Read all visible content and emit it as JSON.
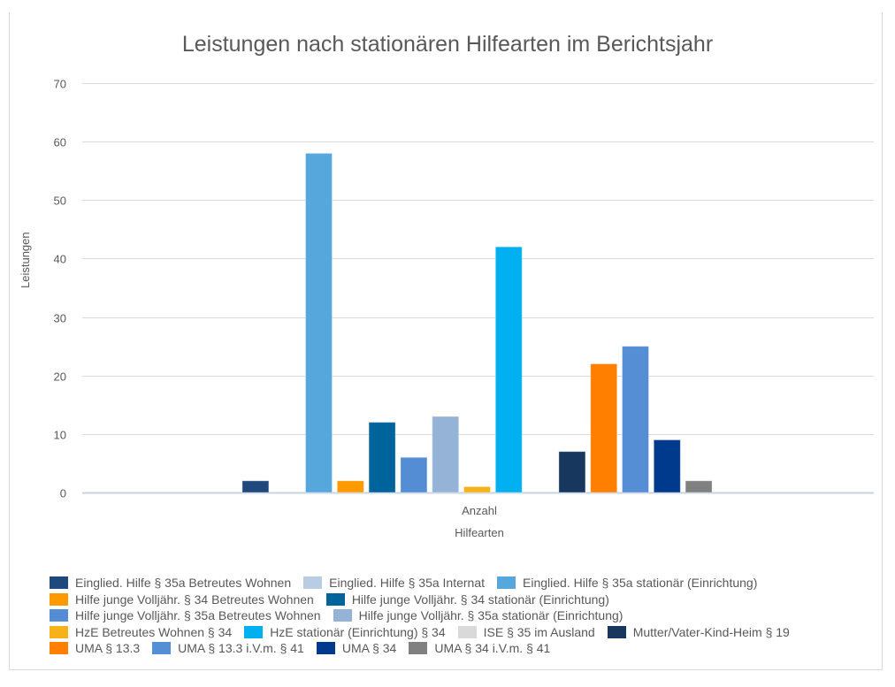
{
  "chart_data": {
    "type": "bar",
    "title": "Leistungen nach stationären Hilfearten im Berichtsjahr",
    "xlabel": "Hilfearten",
    "ylabel": "Leistungen",
    "categories": [
      "Anzahl"
    ],
    "ylim": [
      0,
      70
    ],
    "yticks": [
      0,
      10,
      20,
      30,
      40,
      50,
      60,
      70
    ],
    "grid": true,
    "legend_position": "bottom",
    "series": [
      {
        "name": "Einglied. Hilfe § 35a Betreutes Wohnen",
        "color": "#1f497d",
        "values": [
          2
        ]
      },
      {
        "name": "Einglied. Hilfe § 35a Internat",
        "color": "#b8cce4",
        "values": [
          0
        ]
      },
      {
        "name": "Einglied. Hilfe § 35a stationär (Einrichtung)",
        "color": "#56a8dc",
        "values": [
          58
        ]
      },
      {
        "name": "Hilfe junge Volljähr. § 34 Betreutes Wohnen",
        "color": "#ff9900",
        "values": [
          2
        ]
      },
      {
        "name": "Hilfe junge Volljähr. § 34 stationär (Einrichtung)",
        "color": "#00649c",
        "values": [
          12
        ]
      },
      {
        "name": "Hilfe junge Volljähr. § 35a Betreutes Wohnen",
        "color": "#548dd4",
        "values": [
          6
        ]
      },
      {
        "name": "Hilfe junge Volljähr. § 35a stationär (Einrichtung)",
        "color": "#95b3d7",
        "values": [
          13
        ]
      },
      {
        "name": "HzE Betreutes Wohnen § 34",
        "color": "#f7b219",
        "values": [
          1
        ]
      },
      {
        "name": "HzE stationär (Einrichtung) § 34",
        "color": "#00b0f0",
        "values": [
          42
        ]
      },
      {
        "name": "ISE § 35 im Ausland",
        "color": "#d9d9d9",
        "values": [
          0
        ]
      },
      {
        "name": "Mutter/Vater-Kind-Heim § 19",
        "color": "#17375e",
        "values": [
          7
        ]
      },
      {
        "name": "UMA § 13.3",
        "color": "#ff7f00",
        "values": [
          22
        ]
      },
      {
        "name": "UMA § 13.3 i.V.m. § 41",
        "color": "#558ed5",
        "values": [
          25
        ]
      },
      {
        "name": "UMA § 34",
        "color": "#003a8c",
        "values": [
          9
        ]
      },
      {
        "name": "UMA § 34 i.V.m. § 41",
        "color": "#808080",
        "values": [
          2
        ]
      }
    ]
  },
  "legend_rows": [
    [
      0,
      1,
      2
    ],
    [
      3,
      4
    ],
    [
      5,
      6
    ],
    [
      7,
      8,
      9,
      10
    ],
    [
      11,
      12,
      13,
      14
    ]
  ]
}
